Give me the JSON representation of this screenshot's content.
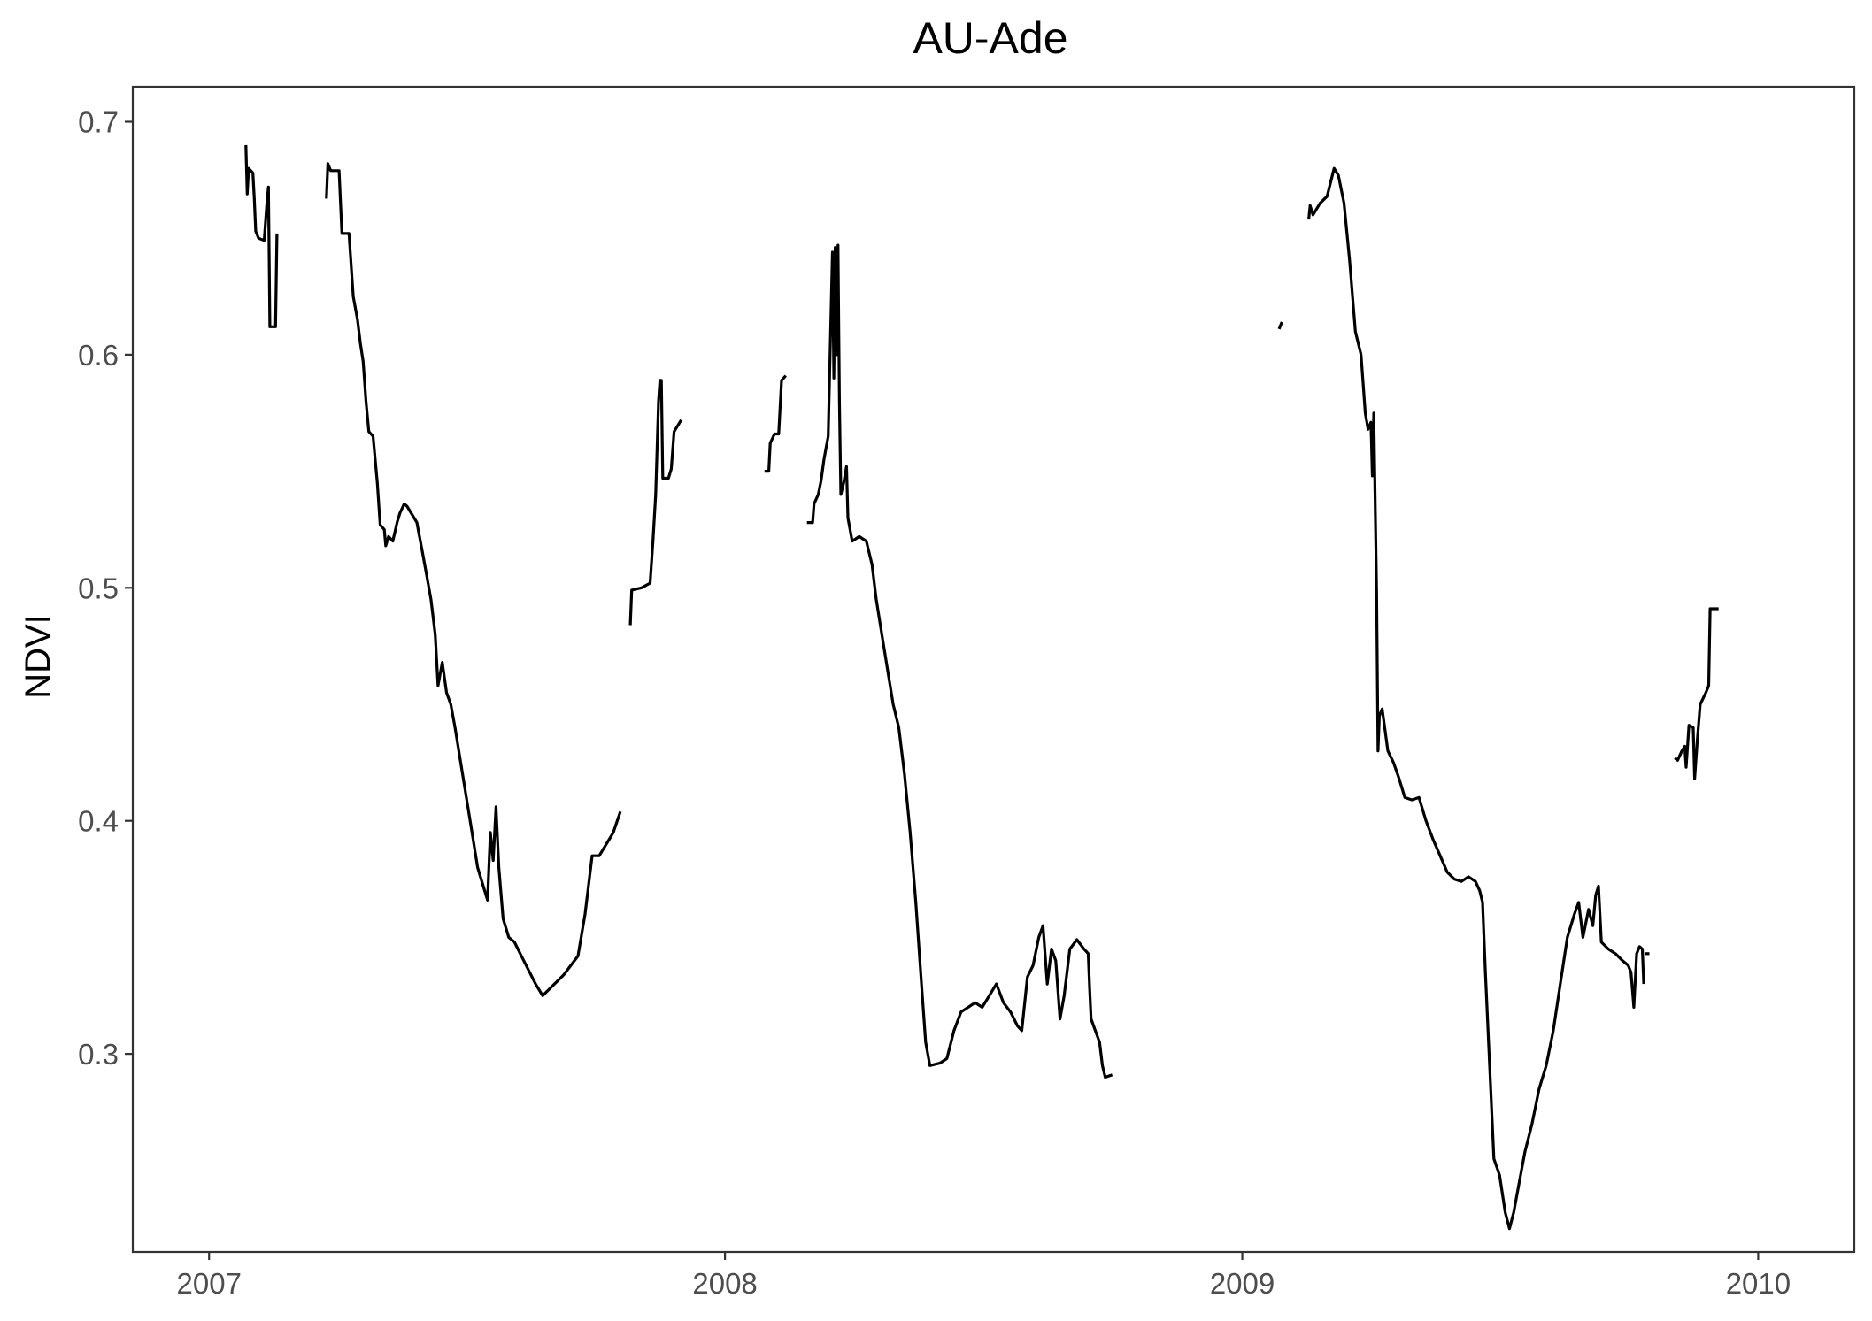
{
  "chart_data": {
    "type": "line",
    "title": "AU-Ade",
    "xlabel": "",
    "ylabel": "NDVI",
    "x_ticks": [
      "2007",
      "2008",
      "2009",
      "2010"
    ],
    "y_ticks": [
      "0.3",
      "0.4",
      "0.5",
      "0.6",
      "0.7"
    ],
    "xlim": [
      "2006-11-08",
      "2010-03-10"
    ],
    "ylim": [
      0.215,
      0.715
    ],
    "grid": false,
    "legend": "none",
    "colors": {
      "line": "#000000",
      "panel_border": "#333333",
      "tick_text": "#4d4d4d"
    },
    "series": [
      {
        "segments": [
          [
            [
              "2007-01-27",
              0.69
            ],
            [
              "2007-01-28",
              0.669
            ],
            [
              "2007-01-29",
              0.68
            ],
            [
              "2007-02-01",
              0.678
            ],
            [
              "2007-02-02",
              0.667
            ],
            [
              "2007-02-03",
              0.653
            ],
            [
              "2007-02-05",
              0.65
            ],
            [
              "2007-02-09",
              0.649
            ],
            [
              "2007-02-11",
              0.666
            ],
            [
              "2007-02-12",
              0.672
            ],
            [
              "2007-02-13",
              0.612
            ],
            [
              "2007-02-17",
              0.612
            ],
            [
              "2007-02-18",
              0.652
            ]
          ],
          [
            [
              "2007-03-25",
              0.667
            ],
            [
              "2007-03-26",
              0.682
            ],
            [
              "2007-03-28",
              0.679
            ],
            [
              "2007-04-03",
              0.679
            ],
            [
              "2007-04-05",
              0.652
            ],
            [
              "2007-04-10",
              0.652
            ],
            [
              "2007-04-13",
              0.625
            ],
            [
              "2007-04-16",
              0.615
            ],
            [
              "2007-04-18",
              0.605
            ],
            [
              "2007-04-20",
              0.597
            ],
            [
              "2007-04-22",
              0.58
            ],
            [
              "2007-04-24",
              0.567
            ],
            [
              "2007-04-27",
              0.565
            ],
            [
              "2007-04-30",
              0.545
            ],
            [
              "2007-05-02",
              0.527
            ],
            [
              "2007-05-05",
              0.525
            ],
            [
              "2007-05-06",
              0.518
            ],
            [
              "2007-05-08",
              0.522
            ],
            [
              "2007-05-11",
              0.52
            ],
            [
              "2007-05-14",
              0.528
            ],
            [
              "2007-05-16",
              0.532
            ],
            [
              "2007-05-19",
              0.536
            ],
            [
              "2007-05-21",
              0.535
            ],
            [
              "2007-05-24",
              0.532
            ],
            [
              "2007-05-28",
              0.528
            ],
            [
              "2007-06-01",
              0.515
            ],
            [
              "2007-06-04",
              0.505
            ],
            [
              "2007-06-07",
              0.495
            ],
            [
              "2007-06-10",
              0.48
            ],
            [
              "2007-06-12",
              0.458
            ],
            [
              "2007-06-15",
              0.468
            ],
            [
              "2007-06-18",
              0.455
            ],
            [
              "2007-06-21",
              0.45
            ],
            [
              "2007-06-24",
              0.44
            ],
            [
              "2007-06-28",
              0.425
            ],
            [
              "2007-07-02",
              0.41
            ],
            [
              "2007-07-06",
              0.395
            ],
            [
              "2007-07-10",
              0.38
            ],
            [
              "2007-07-14",
              0.372
            ],
            [
              "2007-07-17",
              0.366
            ],
            [
              "2007-07-19",
              0.395
            ],
            [
              "2007-07-21",
              0.383
            ],
            [
              "2007-07-23",
              0.406
            ],
            [
              "2007-07-25",
              0.38
            ],
            [
              "2007-07-28",
              0.358
            ],
            [
              "2007-08-01",
              0.35
            ],
            [
              "2007-08-05",
              0.348
            ],
            [
              "2007-08-10",
              0.342
            ],
            [
              "2007-08-15",
              0.336
            ],
            [
              "2007-08-20",
              0.33
            ],
            [
              "2007-08-25",
              0.325
            ],
            [
              "2007-08-30",
              0.328
            ],
            [
              "2007-09-04",
              0.331
            ],
            [
              "2007-09-09",
              0.334
            ],
            [
              "2007-09-14",
              0.338
            ],
            [
              "2007-09-19",
              0.342
            ],
            [
              "2007-09-24",
              0.36
            ],
            [
              "2007-09-29",
              0.385
            ],
            [
              "2007-10-04",
              0.385
            ],
            [
              "2007-10-09",
              0.39
            ],
            [
              "2007-10-14",
              0.395
            ],
            [
              "2007-10-19",
              0.404
            ]
          ],
          [
            [
              "2007-10-26",
              0.484
            ],
            [
              "2007-10-27",
              0.499
            ],
            [
              "2007-11-03",
              0.5
            ],
            [
              "2007-11-09",
              0.502
            ],
            [
              "2007-11-11",
              0.52
            ],
            [
              "2007-11-13",
              0.54
            ],
            [
              "2007-11-15",
              0.58
            ],
            [
              "2007-11-16",
              0.589
            ],
            [
              "2007-11-17",
              0.589
            ],
            [
              "2007-11-18",
              0.547
            ],
            [
              "2007-11-22",
              0.547
            ],
            [
              "2007-11-24",
              0.551
            ],
            [
              "2007-11-26",
              0.567
            ],
            [
              "2007-11-29",
              0.57
            ],
            [
              "2007-12-01",
              0.572
            ]
          ],
          [
            [
              "2008-01-29",
              0.55
            ],
            [
              "2008-02-01",
              0.55
            ],
            [
              "2008-02-02",
              0.562
            ],
            [
              "2008-02-05",
              0.566
            ],
            [
              "2008-02-08",
              0.566
            ],
            [
              "2008-02-10",
              0.589
            ],
            [
              "2008-02-13",
              0.591
            ]
          ],
          [
            [
              "2008-02-28",
              0.528
            ],
            [
              "2008-03-03",
              0.528
            ],
            [
              "2008-03-04",
              0.536
            ],
            [
              "2008-03-07",
              0.54
            ],
            [
              "2008-03-09",
              0.546
            ],
            [
              "2008-03-11",
              0.555
            ],
            [
              "2008-03-14",
              0.565
            ],
            [
              "2008-03-17",
              0.644
            ],
            [
              "2008-03-18",
              0.59
            ],
            [
              "2008-03-19",
              0.646
            ],
            [
              "2008-03-20",
              0.6
            ],
            [
              "2008-03-21",
              0.647
            ],
            [
              "2008-03-22",
              0.58
            ],
            [
              "2008-03-23",
              0.54
            ],
            [
              "2008-03-25",
              0.545
            ],
            [
              "2008-03-27",
              0.552
            ],
            [
              "2008-03-28",
              0.53
            ],
            [
              "2008-03-31",
              0.52
            ],
            [
              "2008-04-05",
              0.522
            ],
            [
              "2008-04-10",
              0.52
            ],
            [
              "2008-04-14",
              0.51
            ],
            [
              "2008-04-17",
              0.495
            ],
            [
              "2008-04-21",
              0.48
            ],
            [
              "2008-04-25",
              0.465
            ],
            [
              "2008-04-29",
              0.45
            ],
            [
              "2008-05-03",
              0.44
            ],
            [
              "2008-05-07",
              0.42
            ],
            [
              "2008-05-11",
              0.395
            ],
            [
              "2008-05-15",
              0.365
            ],
            [
              "2008-05-19",
              0.33
            ],
            [
              "2008-05-22",
              0.305
            ],
            [
              "2008-05-25",
              0.295
            ],
            [
              "2008-06-01",
              0.296
            ],
            [
              "2008-06-06",
              0.298
            ],
            [
              "2008-06-11",
              0.31
            ],
            [
              "2008-06-16",
              0.318
            ],
            [
              "2008-06-21",
              0.32
            ],
            [
              "2008-06-26",
              0.322
            ],
            [
              "2008-07-01",
              0.32
            ],
            [
              "2008-07-06",
              0.325
            ],
            [
              "2008-07-11",
              0.33
            ],
            [
              "2008-07-16",
              0.322
            ],
            [
              "2008-07-21",
              0.318
            ],
            [
              "2008-07-26",
              0.312
            ],
            [
              "2008-07-29",
              0.31
            ],
            [
              "2008-08-02",
              0.333
            ],
            [
              "2008-08-06",
              0.338
            ],
            [
              "2008-08-10",
              0.35
            ],
            [
              "2008-08-13",
              0.355
            ],
            [
              "2008-08-16",
              0.33
            ],
            [
              "2008-08-19",
              0.345
            ],
            [
              "2008-08-22",
              0.34
            ],
            [
              "2008-08-25",
              0.315
            ],
            [
              "2008-08-28",
              0.325
            ],
            [
              "2008-09-01",
              0.345
            ],
            [
              "2008-09-06",
              0.349
            ],
            [
              "2008-09-11",
              0.345
            ],
            [
              "2008-09-14",
              0.343
            ],
            [
              "2008-09-15",
              0.328
            ],
            [
              "2008-09-16",
              0.315
            ],
            [
              "2008-09-19",
              0.31
            ],
            [
              "2008-09-22",
              0.305
            ],
            [
              "2008-09-24",
              0.295
            ],
            [
              "2008-09-26",
              0.29
            ],
            [
              "2008-10-01",
              0.291
            ]
          ],
          [
            [
              "2009-01-27",
              0.611
            ],
            [
              "2009-01-29",
              0.614
            ]
          ],
          [
            [
              "2009-02-17",
              0.658
            ],
            [
              "2009-02-18",
              0.664
            ],
            [
              "2009-02-20",
              0.66
            ],
            [
              "2009-02-25",
              0.665
            ],
            [
              "2009-03-02",
              0.668
            ],
            [
              "2009-03-07",
              0.68
            ],
            [
              "2009-03-10",
              0.677
            ],
            [
              "2009-03-14",
              0.665
            ],
            [
              "2009-03-18",
              0.64
            ],
            [
              "2009-03-22",
              0.61
            ],
            [
              "2009-03-26",
              0.6
            ],
            [
              "2009-03-29",
              0.575
            ],
            [
              "2009-03-31",
              0.568
            ],
            [
              "2009-04-02",
              0.571
            ],
            [
              "2009-04-03",
              0.548
            ],
            [
              "2009-04-04",
              0.575
            ],
            [
              "2009-04-06",
              0.498
            ],
            [
              "2009-04-07",
              0.43
            ],
            [
              "2009-04-08",
              0.445
            ],
            [
              "2009-04-10",
              0.448
            ],
            [
              "2009-04-14",
              0.43
            ],
            [
              "2009-04-18",
              0.425
            ],
            [
              "2009-04-22",
              0.418
            ],
            [
              "2009-04-26",
              0.41
            ],
            [
              "2009-05-01",
              0.409
            ],
            [
              "2009-05-06",
              0.41
            ],
            [
              "2009-05-11",
              0.4
            ],
            [
              "2009-05-16",
              0.392
            ],
            [
              "2009-05-21",
              0.385
            ],
            [
              "2009-05-26",
              0.378
            ],
            [
              "2009-05-31",
              0.375
            ],
            [
              "2009-06-05",
              0.374
            ],
            [
              "2009-06-10",
              0.376
            ],
            [
              "2009-06-15",
              0.374
            ],
            [
              "2009-06-18",
              0.37
            ],
            [
              "2009-06-20",
              0.365
            ],
            [
              "2009-06-22",
              0.335
            ],
            [
              "2009-06-25",
              0.295
            ],
            [
              "2009-06-28",
              0.255
            ],
            [
              "2009-07-02",
              0.248
            ],
            [
              "2009-07-06",
              0.232
            ],
            [
              "2009-07-09",
              0.225
            ],
            [
              "2009-07-12",
              0.232
            ],
            [
              "2009-07-16",
              0.245
            ],
            [
              "2009-07-20",
              0.258
            ],
            [
              "2009-07-25",
              0.27
            ],
            [
              "2009-07-30",
              0.285
            ],
            [
              "2009-08-04",
              0.295
            ],
            [
              "2009-08-09",
              0.31
            ],
            [
              "2009-08-14",
              0.33
            ],
            [
              "2009-08-19",
              0.35
            ],
            [
              "2009-08-24",
              0.36
            ],
            [
              "2009-08-27",
              0.365
            ],
            [
              "2009-08-30",
              0.35
            ],
            [
              "2009-09-03",
              0.362
            ],
            [
              "2009-09-06",
              0.355
            ],
            [
              "2009-09-08",
              0.368
            ],
            [
              "2009-09-10",
              0.372
            ],
            [
              "2009-09-12",
              0.348
            ],
            [
              "2009-09-17",
              0.345
            ],
            [
              "2009-09-22",
              0.343
            ],
            [
              "2009-09-27",
              0.34
            ],
            [
              "2009-10-01",
              0.338
            ],
            [
              "2009-10-03",
              0.335
            ],
            [
              "2009-10-05",
              0.32
            ],
            [
              "2009-10-07",
              0.343
            ],
            [
              "2009-10-09",
              0.346
            ],
            [
              "2009-10-11",
              0.345
            ],
            [
              "2009-10-12",
              0.33
            ]
          ],
          [
            [
              "2009-10-13",
              0.343
            ],
            [
              "2009-10-16",
              0.343
            ]
          ],
          [
            [
              "2009-11-03",
              0.427
            ],
            [
              "2009-11-05",
              0.426
            ],
            [
              "2009-11-08",
              0.43
            ],
            [
              "2009-11-10",
              0.432
            ],
            [
              "2009-11-11",
              0.423
            ],
            [
              "2009-11-13",
              0.441
            ],
            [
              "2009-11-16",
              0.44
            ],
            [
              "2009-11-17",
              0.418
            ],
            [
              "2009-11-19",
              0.435
            ],
            [
              "2009-11-21",
              0.45
            ],
            [
              "2009-11-25",
              0.455
            ],
            [
              "2009-11-27",
              0.458
            ],
            [
              "2009-11-28",
              0.491
            ],
            [
              "2009-12-04",
              0.491
            ]
          ]
        ]
      }
    ]
  }
}
